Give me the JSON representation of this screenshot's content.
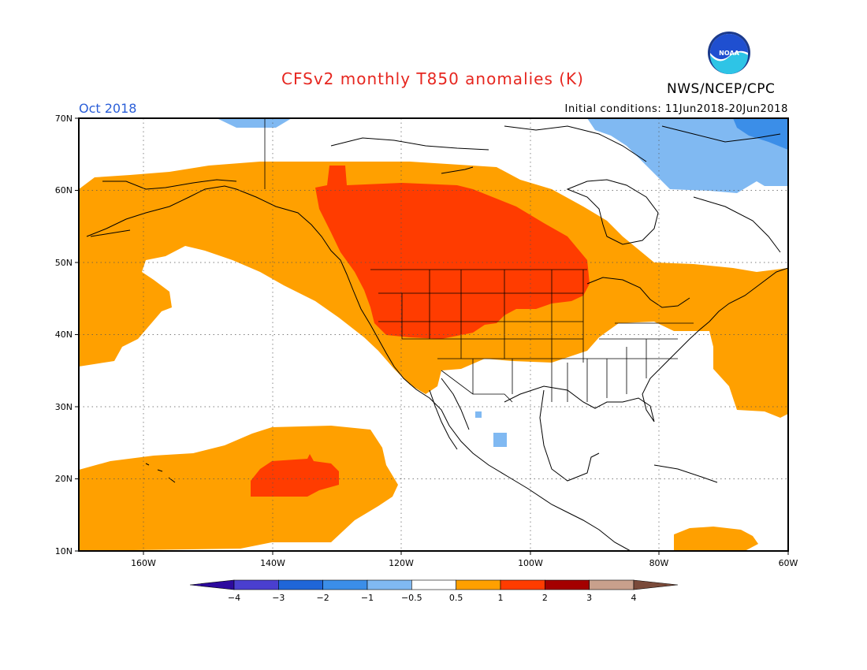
{
  "title": "CFSv2 monthly T850 anomalies (K)",
  "agency": "NWS/NCEP/CPC",
  "logo_text": "NOAA",
  "period": "Oct 2018",
  "initial_conditions": "Initial conditions: 11Jun2018-20Jun2018",
  "lat_labels": [
    "70N",
    "60N",
    "50N",
    "40N",
    "30N",
    "20N",
    "10N"
  ],
  "lon_labels": [
    "160W",
    "140W",
    "120W",
    "100W",
    "80W",
    "60W"
  ],
  "colorbar": {
    "labels": [
      "-4",
      "-3",
      "-2",
      "-1",
      "-0.5",
      "0.5",
      "1",
      "2",
      "3",
      "4"
    ],
    "colors": [
      "#2d0a9e",
      "#4a3fcf",
      "#1f66d8",
      "#3b8ee8",
      "#80b9f2",
      "#ffffff",
      "#ffa000",
      "#ff3c00",
      "#a40000",
      "#c8a08c",
      "#7a4a3a"
    ]
  },
  "palette": {
    "warm_05_1": "#ffa000",
    "warm_1_2": "#ff3c00",
    "cool_m1_m05": "#80b9f2",
    "cool_m2_m1": "#3b8ee8"
  }
}
